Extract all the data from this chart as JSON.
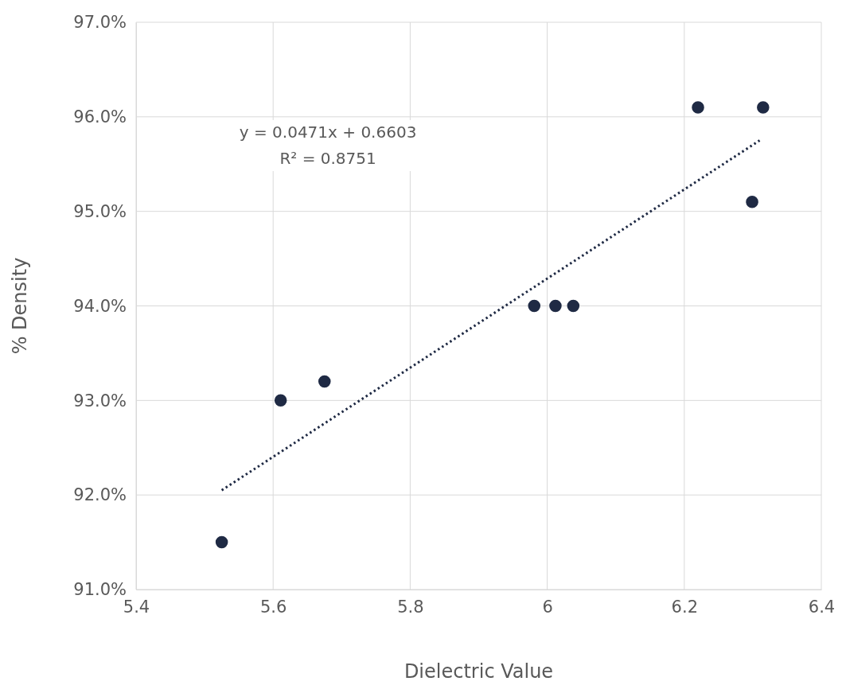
{
  "chart_data": {
    "type": "scatter",
    "xlabel": "Dielectric Value",
    "ylabel": "% Density",
    "xlim": [
      5.4,
      6.4
    ],
    "xticks": [
      5.4,
      5.6,
      5.8,
      {
        "value": 6,
        "label": "6"
      },
      6.2,
      6.4
    ],
    "ylim": [
      91,
      97
    ],
    "yticks": [
      {
        "value": 91,
        "label": "91.0%"
      },
      {
        "value": 92,
        "label": "92.0%"
      },
      {
        "value": 93,
        "label": "93.0%"
      },
      {
        "value": 94,
        "label": "94.0%"
      },
      {
        "value": 95,
        "label": "95.0%"
      },
      {
        "value": 96,
        "label": "96.0%"
      },
      {
        "value": 97,
        "label": "97.0%"
      }
    ],
    "grid": true,
    "marker": "circle",
    "series": [
      {
        "color": "#1f2a44",
        "x": [
          5.525,
          5.611,
          5.675,
          5.981,
          6.012,
          6.038,
          6.22,
          6.299,
          6.315
        ],
        "values": [
          91.5,
          93.0,
          93.2,
          94.0,
          94.0,
          94.0,
          96.1,
          95.1,
          96.1
        ]
      },
      {
        "type": "line",
        "color": "#1f2a44",
        "line_style": "dotted",
        "marker": "none",
        "x": [
          5.525,
          6.31
        ],
        "values": [
          92.05,
          95.75
        ]
      }
    ],
    "annotations": [
      "y = 0.0471x + 0.6603",
      "R² = 0.8751"
    ]
  }
}
